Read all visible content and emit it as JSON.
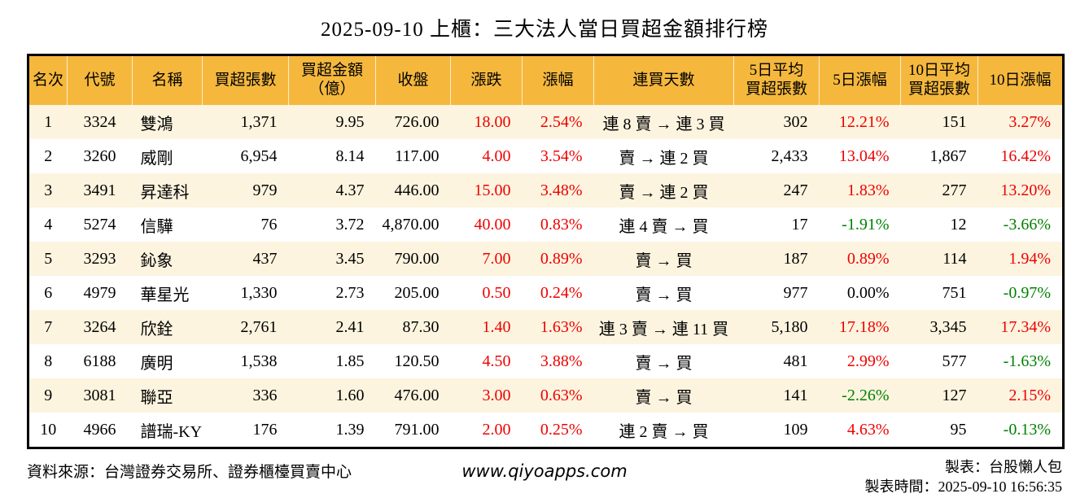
{
  "title": "2025-09-10 上櫃：三大法人當日買超金額排行榜",
  "colors": {
    "header_bg": "#f5b83d",
    "row_alt_bg": "#fcf4df",
    "up": "#ee0000",
    "down": "#008000",
    "flat": "#000000",
    "border": "#000000"
  },
  "table": {
    "columns": [
      {
        "key": "rank",
        "label": "名次",
        "align": "ac"
      },
      {
        "key": "code",
        "label": "代號",
        "align": "ac"
      },
      {
        "key": "name",
        "label": "名稱",
        "align": "al"
      },
      {
        "key": "net_buy_volume",
        "label": "買超張數",
        "align": "ar"
      },
      {
        "key": "net_buy_amount",
        "label": "買超金額\n（億）",
        "align": "ar"
      },
      {
        "key": "close",
        "label": "收盤",
        "align": "ar"
      },
      {
        "key": "change",
        "label": "漲跌",
        "align": "ar",
        "color_key": "change_color"
      },
      {
        "key": "change_pct",
        "label": "漲幅",
        "align": "ar",
        "color_key": "change_pct_color"
      },
      {
        "key": "streak",
        "label": "連買天數",
        "align": "ac"
      },
      {
        "key": "avg5_volume",
        "label": "5日平均\n買超張數",
        "align": "ar"
      },
      {
        "key": "pct5",
        "label": "5日漲幅",
        "align": "ar",
        "color_key": "pct5_color"
      },
      {
        "key": "avg10_volume",
        "label": "10日平均\n買超張數",
        "align": "ar"
      },
      {
        "key": "pct10",
        "label": "10日漲幅",
        "align": "ar",
        "color_key": "pct10_color"
      }
    ],
    "rows": [
      {
        "rank": "1",
        "code": "3324",
        "name": "雙鴻",
        "net_buy_volume": "1,371",
        "net_buy_amount": "9.95",
        "close": "726.00",
        "change": "18.00",
        "change_color": "up",
        "change_pct": "2.54%",
        "change_pct_color": "up",
        "streak": "連 8 賣 → 連 3 買",
        "avg5_volume": "302",
        "pct5": "12.21%",
        "pct5_color": "up",
        "avg10_volume": "151",
        "pct10": "3.27%",
        "pct10_color": "up"
      },
      {
        "rank": "2",
        "code": "3260",
        "name": "威剛",
        "net_buy_volume": "6,954",
        "net_buy_amount": "8.14",
        "close": "117.00",
        "change": "4.00",
        "change_color": "up",
        "change_pct": "3.54%",
        "change_pct_color": "up",
        "streak": "賣 → 連 2 買",
        "avg5_volume": "2,433",
        "pct5": "13.04%",
        "pct5_color": "up",
        "avg10_volume": "1,867",
        "pct10": "16.42%",
        "pct10_color": "up"
      },
      {
        "rank": "3",
        "code": "3491",
        "name": "昇達科",
        "net_buy_volume": "979",
        "net_buy_amount": "4.37",
        "close": "446.00",
        "change": "15.00",
        "change_color": "up",
        "change_pct": "3.48%",
        "change_pct_color": "up",
        "streak": "賣 → 連 2 買",
        "avg5_volume": "247",
        "pct5": "1.83%",
        "pct5_color": "up",
        "avg10_volume": "277",
        "pct10": "13.20%",
        "pct10_color": "up"
      },
      {
        "rank": "4",
        "code": "5274",
        "name": "信驊",
        "net_buy_volume": "76",
        "net_buy_amount": "3.72",
        "close": "4,870.00",
        "change": "40.00",
        "change_color": "up",
        "change_pct": "0.83%",
        "change_pct_color": "up",
        "streak": "連 4 賣 → 買",
        "avg5_volume": "17",
        "pct5": "-1.91%",
        "pct5_color": "down",
        "avg10_volume": "12",
        "pct10": "-3.66%",
        "pct10_color": "down"
      },
      {
        "rank": "5",
        "code": "3293",
        "name": "鈊象",
        "net_buy_volume": "437",
        "net_buy_amount": "3.45",
        "close": "790.00",
        "change": "7.00",
        "change_color": "up",
        "change_pct": "0.89%",
        "change_pct_color": "up",
        "streak": "賣 → 買",
        "avg5_volume": "187",
        "pct5": "0.89%",
        "pct5_color": "up",
        "avg10_volume": "114",
        "pct10": "1.94%",
        "pct10_color": "up"
      },
      {
        "rank": "6",
        "code": "4979",
        "name": "華星光",
        "net_buy_volume": "1,330",
        "net_buy_amount": "2.73",
        "close": "205.00",
        "change": "0.50",
        "change_color": "up",
        "change_pct": "0.24%",
        "change_pct_color": "up",
        "streak": "賣 → 買",
        "avg5_volume": "977",
        "pct5": "0.00%",
        "pct5_color": "flat",
        "avg10_volume": "751",
        "pct10": "-0.97%",
        "pct10_color": "down"
      },
      {
        "rank": "7",
        "code": "3264",
        "name": "欣銓",
        "net_buy_volume": "2,761",
        "net_buy_amount": "2.41",
        "close": "87.30",
        "change": "1.40",
        "change_color": "up",
        "change_pct": "1.63%",
        "change_pct_color": "up",
        "streak": "連 3 賣 → 連 11 買",
        "avg5_volume": "5,180",
        "pct5": "17.18%",
        "pct5_color": "up",
        "avg10_volume": "3,345",
        "pct10": "17.34%",
        "pct10_color": "up"
      },
      {
        "rank": "8",
        "code": "6188",
        "name": "廣明",
        "net_buy_volume": "1,538",
        "net_buy_amount": "1.85",
        "close": "120.50",
        "change": "4.50",
        "change_color": "up",
        "change_pct": "3.88%",
        "change_pct_color": "up",
        "streak": "賣 → 買",
        "avg5_volume": "481",
        "pct5": "2.99%",
        "pct5_color": "up",
        "avg10_volume": "577",
        "pct10": "-1.63%",
        "pct10_color": "down"
      },
      {
        "rank": "9",
        "code": "3081",
        "name": "聯亞",
        "net_buy_volume": "336",
        "net_buy_amount": "1.60",
        "close": "476.00",
        "change": "3.00",
        "change_color": "up",
        "change_pct": "0.63%",
        "change_pct_color": "up",
        "streak": "賣 → 買",
        "avg5_volume": "141",
        "pct5": "-2.26%",
        "pct5_color": "down",
        "avg10_volume": "127",
        "pct10": "2.15%",
        "pct10_color": "up"
      },
      {
        "rank": "10",
        "code": "4966",
        "name": "譜瑞-KY",
        "net_buy_volume": "176",
        "net_buy_amount": "1.39",
        "close": "791.00",
        "change": "2.00",
        "change_color": "up",
        "change_pct": "0.25%",
        "change_pct_color": "up",
        "streak": "連 2 賣 → 買",
        "avg5_volume": "109",
        "pct5": "4.63%",
        "pct5_color": "up",
        "avg10_volume": "95",
        "pct10": "-0.13%",
        "pct10_color": "down"
      }
    ]
  },
  "footer": {
    "source": "資料來源：台灣證券交易所、證券櫃檯買賣中心",
    "site": "www.qiyoapps.com",
    "made_by": "製表：台股懶人包",
    "made_time": "製表時間：2025-09-10 16:56:35"
  }
}
